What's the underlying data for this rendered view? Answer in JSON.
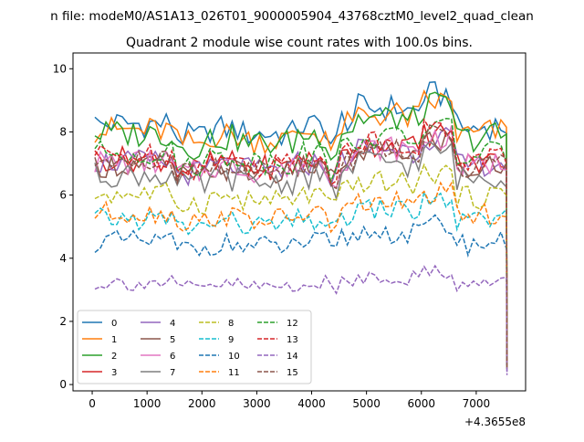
{
  "figure": {
    "suptitle": "n file: modeM0/AS1A13_026T01_9000005904_43768cztM0_level2_quad_clean",
    "title": "Quadrant 2 module wise count rates with 100.0s bins.",
    "x_offset_label": "+4.3655e8"
  },
  "colors": [
    "#1f77b4",
    "#ff7f0e",
    "#2ca02c",
    "#d62728",
    "#9467bd",
    "#8c564b",
    "#e377c2",
    "#7f7f7f",
    "#bcbd22",
    "#17becf",
    "#1f77b4",
    "#ff7f0e",
    "#2ca02c",
    "#d62728",
    "#9467bd",
    "#8c564b"
  ],
  "chart_data": {
    "type": "line",
    "title": "Quadrant 2 module wise count rates with 100.0s bins.",
    "xlabel": "",
    "ylabel": "",
    "xlim": [
      -350,
      7900
    ],
    "ylim": [
      -0.2,
      10.5
    ],
    "x_ticks": [
      0,
      1000,
      2000,
      3000,
      4000,
      5000,
      6000,
      7000
    ],
    "x_tick_labels": [
      "0",
      "1000",
      "2000",
      "3000",
      "4000",
      "5000",
      "6000",
      "7000"
    ],
    "y_ticks": [
      0,
      2,
      4,
      6,
      8,
      10
    ],
    "y_tick_labels": [
      "0",
      "2",
      "4",
      "6",
      "8",
      "10"
    ],
    "x_offset": "+4.3655e8",
    "x_start": 50,
    "x_step": 100,
    "x_count": 76,
    "last_x": 7560,
    "last_values": [
      0.7,
      0.7,
      0.7,
      0.6,
      0.4,
      0.6,
      0.6,
      0.6,
      0.5,
      0.5,
      0.5,
      0.5,
      0.6,
      0.6,
      0.3,
      0.5
    ],
    "legend": {
      "placement": "lower-left",
      "columns": 4
    },
    "series": [
      {
        "name": "0",
        "level": 8.2,
        "amp": 0.45
      },
      {
        "name": "1",
        "level": 8.0,
        "amp": 0.45
      },
      {
        "name": "2",
        "level": 7.9,
        "amp": 0.45
      },
      {
        "name": "3",
        "level": 7.1,
        "amp": 0.4
      },
      {
        "name": "4",
        "level": 7.0,
        "amp": 0.4
      },
      {
        "name": "5",
        "level": 6.9,
        "amp": 0.4
      },
      {
        "name": "6",
        "level": 7.0,
        "amp": 0.4
      },
      {
        "name": "7",
        "level": 6.6,
        "amp": 0.4
      },
      {
        "name": "8",
        "level": 6.0,
        "amp": 0.35
      },
      {
        "name": "9",
        "level": 5.2,
        "amp": 0.35
      },
      {
        "name": "10",
        "level": 4.5,
        "amp": 0.35
      },
      {
        "name": "11",
        "level": 5.4,
        "amp": 0.35
      },
      {
        "name": "12",
        "level": 7.3,
        "amp": 0.4
      },
      {
        "name": "13",
        "level": 7.2,
        "amp": 0.4
      },
      {
        "name": "14",
        "level": 3.2,
        "amp": 0.25
      },
      {
        "name": "15",
        "level": 7.0,
        "amp": 0.4
      }
    ]
  }
}
